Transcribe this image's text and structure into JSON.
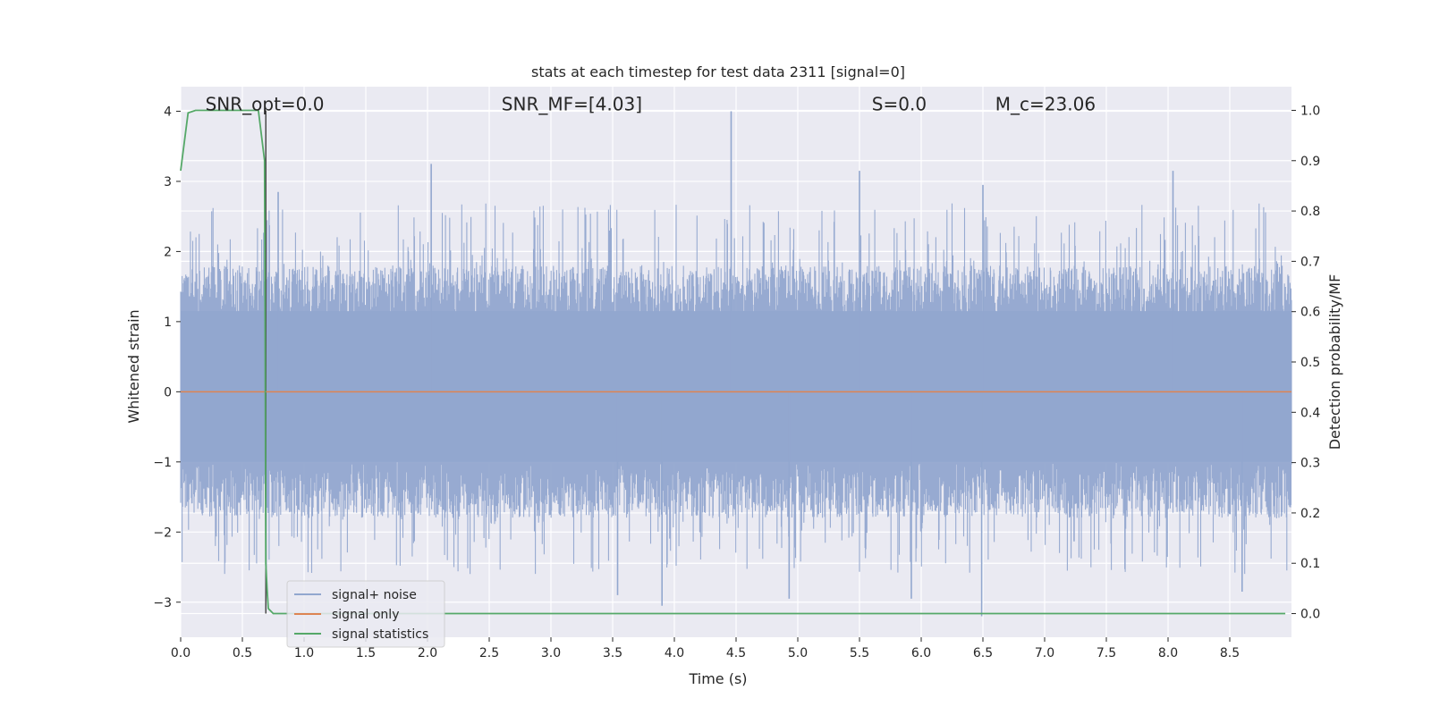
{
  "chart_data": {
    "type": "line",
    "title": "stats at each timestep for test data 2311 [signal=0]",
    "xlabel": "Time (s)",
    "ylabel": "Whitened strain",
    "ylabel_right": "Detection probability/MF",
    "xlim": [
      0.0,
      9.0
    ],
    "ylim": [
      -3.5,
      4.35
    ],
    "ylim_right": [
      -0.047,
      1.047
    ],
    "x_ticks": [
      0.0,
      0.5,
      1.0,
      1.5,
      2.0,
      2.5,
      3.0,
      3.5,
      4.0,
      4.5,
      5.0,
      5.5,
      6.0,
      6.5,
      7.0,
      7.5,
      8.0,
      8.5
    ],
    "x_tick_labels": [
      "0.0",
      "0.5",
      "1.0",
      "1.5",
      "2.0",
      "2.5",
      "3.0",
      "3.5",
      "4.0",
      "4.5",
      "5.0",
      "5.5",
      "6.0",
      "6.5",
      "7.0",
      "7.5",
      "8.0",
      "8.5"
    ],
    "y_ticks": [
      -3,
      -2,
      -1,
      0,
      1,
      2,
      3,
      4
    ],
    "y_tick_labels": [
      "−3",
      "−2",
      "−1",
      "0",
      "1",
      "2",
      "3",
      "4"
    ],
    "y_right_ticks": [
      0.0,
      0.1,
      0.2,
      0.3,
      0.4,
      0.5,
      0.6,
      0.7,
      0.8,
      0.9,
      1.0
    ],
    "y_right_tick_labels": [
      "0.0",
      "0.1",
      "0.2",
      "0.3",
      "0.4",
      "0.5",
      "0.6",
      "0.7",
      "0.8",
      "0.9",
      "1.0"
    ],
    "grid": true,
    "annotations": [
      {
        "text": "SNR_opt=0.0",
        "x": 0.2,
        "y": 4.1
      },
      {
        "text": "SNR_MF=[4.03]",
        "x": 2.6,
        "y": 4.1
      },
      {
        "text": "S=0.0",
        "x": 5.6,
        "y": 4.1
      },
      {
        "text": "M_c=23.06",
        "x": 6.6,
        "y": 4.1
      }
    ],
    "series": [
      {
        "name": "signal+ noise",
        "color": "#92a7cf",
        "axis": "left",
        "kind": "noise",
        "envelope": {
          "typical_max": 1.8,
          "typical_min": -1.8,
          "peak_max": 4.0,
          "peak_min": -3.2
        },
        "spikes": [
          {
            "x": 2.03,
            "y": 3.25
          },
          {
            "x": 4.46,
            "y": 4.0
          },
          {
            "x": 5.5,
            "y": 3.15
          },
          {
            "x": 6.5,
            "y": 2.95
          },
          {
            "x": 8.04,
            "y": 3.15
          },
          {
            "x": 0.79,
            "y": 2.85
          },
          {
            "x": 3.9,
            "y": -3.05
          },
          {
            "x": 6.49,
            "y": -3.2
          },
          {
            "x": 5.92,
            "y": -2.95
          },
          {
            "x": 3.54,
            "y": -2.9
          },
          {
            "x": 4.93,
            "y": -2.95
          },
          {
            "x": 8.6,
            "y": -2.85
          }
        ]
      },
      {
        "name": "signal only",
        "color": "#dd8452",
        "axis": "left",
        "x": [
          0.0,
          9.0
        ],
        "y": [
          0.0,
          0.0
        ]
      },
      {
        "name": "signal statistics",
        "color": "#55a868",
        "axis": "right",
        "x": [
          0.0,
          0.06,
          0.12,
          0.2,
          0.3,
          0.4,
          0.5,
          0.6,
          0.63,
          0.68,
          0.69,
          0.7,
          0.71,
          0.75,
          1.0,
          9.0
        ],
        "y": [
          0.88,
          0.995,
          1.0,
          1.0,
          1.0,
          1.0,
          1.0,
          1.0,
          1.0,
          0.9,
          0.1,
          0.05,
          0.01,
          0.0,
          0.0,
          0.0
        ]
      }
    ],
    "vline": {
      "x": 0.69,
      "color": "#404040"
    },
    "legend_position": "lower-left"
  }
}
